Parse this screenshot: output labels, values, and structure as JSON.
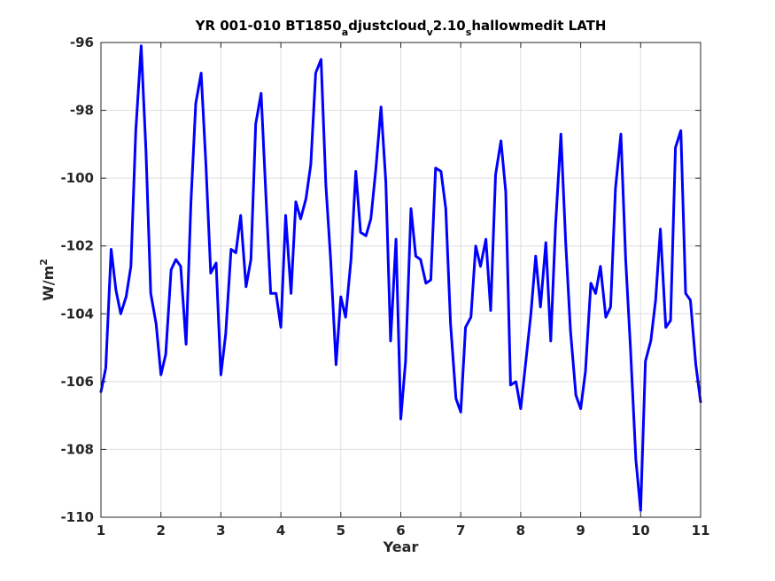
{
  "chart_data": {
    "type": "line",
    "title": {
      "parts": [
        {
          "text": "YR 001-010 BT1850",
          "sub": false
        },
        {
          "text": "a",
          "sub": true
        },
        {
          "text": "djustcloud",
          "sub": false
        },
        {
          "text": "v",
          "sub": true
        },
        {
          "text": "2.10",
          "sub": false
        },
        {
          "text": "s",
          "sub": true
        },
        {
          "text": "hallowmedit LATH",
          "sub": false
        }
      ]
    },
    "xlabel": "Year",
    "ylabel": {
      "base": "W/m",
      "sup": "2"
    },
    "xlim": [
      1,
      11
    ],
    "ylim": [
      -110,
      -96
    ],
    "xticks": [
      1,
      2,
      3,
      4,
      5,
      6,
      7,
      8,
      9,
      10,
      11
    ],
    "yticks": [
      -110,
      -108,
      -106,
      -104,
      -102,
      -100,
      -98,
      -96
    ],
    "grid": true,
    "line_color": "#0000ff",
    "series": [
      {
        "x": [
          1.0,
          1.08,
          1.17,
          1.25,
          1.33,
          1.42,
          1.5,
          1.58,
          1.67,
          1.75,
          1.83,
          1.92,
          2.0,
          2.08,
          2.17,
          2.25,
          2.33,
          2.42,
          2.5,
          2.58,
          2.67,
          2.75,
          2.83,
          2.92,
          3.0,
          3.08,
          3.17,
          3.25,
          3.33,
          3.42,
          3.5,
          3.58,
          3.67,
          3.75,
          3.83,
          3.92,
          4.0,
          4.08,
          4.17,
          4.25,
          4.33,
          4.42,
          4.5,
          4.58,
          4.67,
          4.75,
          4.83,
          4.92,
          5.0,
          5.08,
          5.17,
          5.25,
          5.33,
          5.42,
          5.5,
          5.58,
          5.67,
          5.75,
          5.83,
          5.92,
          6.0,
          6.08,
          6.17,
          6.25,
          6.33,
          6.42,
          6.5,
          6.58,
          6.67,
          6.75,
          6.83,
          6.92,
          7.0,
          7.08,
          7.17,
          7.25,
          7.33,
          7.42,
          7.5,
          7.58,
          7.67,
          7.75,
          7.83,
          7.92,
          8.0,
          8.08,
          8.17,
          8.25,
          8.33,
          8.42,
          8.5,
          8.58,
          8.67,
          8.75,
          8.83,
          8.92,
          9.0,
          9.08,
          9.17,
          9.25,
          9.33,
          9.42,
          9.5,
          9.58,
          9.67,
          9.75,
          9.83,
          9.92,
          10.0,
          10.08,
          10.17,
          10.25,
          10.33,
          10.42,
          10.5,
          10.58,
          10.67,
          10.75,
          10.83,
          10.92,
          11.0
        ],
        "y": [
          -106.3,
          -105.6,
          -102.1,
          -103.3,
          -104.0,
          -103.5,
          -102.6,
          -98.6,
          -96.1,
          -99.2,
          -103.4,
          -104.3,
          -105.8,
          -105.2,
          -102.7,
          -102.4,
          -102.6,
          -104.9,
          -100.7,
          -97.8,
          -96.9,
          -99.6,
          -102.8,
          -102.5,
          -105.8,
          -104.6,
          -102.1,
          -102.2,
          -101.1,
          -103.2,
          -102.4,
          -98.4,
          -97.5,
          -100.5,
          -103.4,
          -103.4,
          -104.4,
          -101.1,
          -103.4,
          -100.7,
          -101.2,
          -100.6,
          -99.6,
          -96.9,
          -96.5,
          -100.2,
          -102.4,
          -105.5,
          -103.5,
          -104.1,
          -102.4,
          -99.8,
          -101.6,
          -101.7,
          -101.2,
          -99.8,
          -97.9,
          -100.1,
          -104.8,
          -101.8,
          -107.1,
          -105.4,
          -100.9,
          -102.3,
          -102.4,
          -103.1,
          -103.0,
          -99.7,
          -99.8,
          -100.9,
          -104.3,
          -106.5,
          -106.9,
          -104.4,
          -104.1,
          -102.0,
          -102.6,
          -101.8,
          -103.9,
          -99.9,
          -98.9,
          -100.4,
          -106.1,
          -106.0,
          -106.8,
          -105.5,
          -104.0,
          -102.3,
          -103.8,
          -101.9,
          -104.8,
          -101.4,
          -98.7,
          -101.9,
          -104.5,
          -106.4,
          -106.8,
          -105.7,
          -103.1,
          -103.4,
          -102.6,
          -104.1,
          -103.8,
          -100.3,
          -98.7,
          -102.4,
          -105.0,
          -108.3,
          -109.8,
          -105.4,
          -104.8,
          -103.6,
          -101.5,
          -104.4,
          -104.2,
          -99.1,
          -98.6,
          -103.4,
          -103.6,
          -105.5,
          -106.6
        ]
      }
    ]
  }
}
